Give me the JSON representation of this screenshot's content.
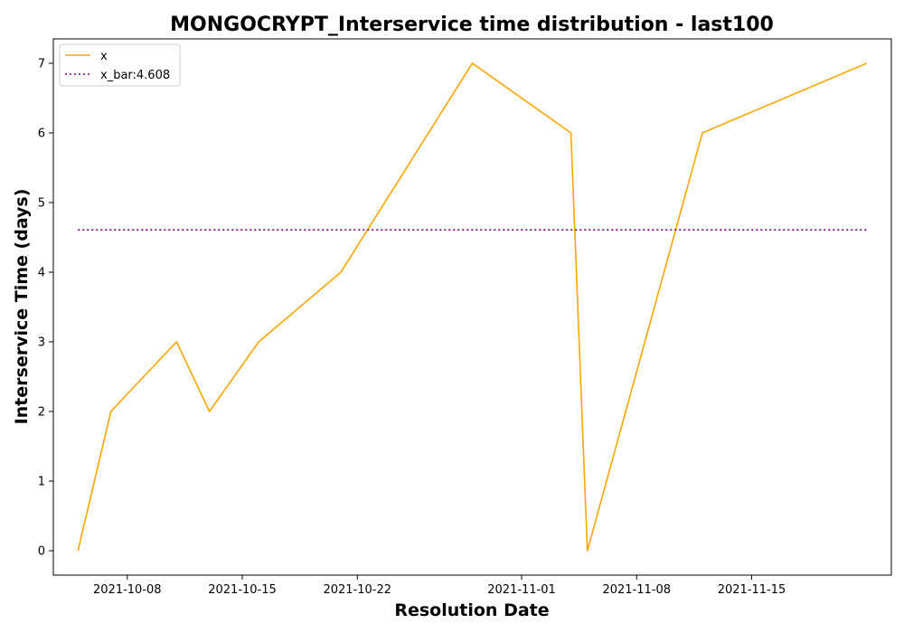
{
  "chart_data": {
    "type": "line",
    "title": "MONGOCRYPT_Interservice time distribution - last100",
    "xlabel": "Resolution Date",
    "ylabel": "Interservice Time (days)",
    "x_ticks": [
      "2021-10-08",
      "2021-10-15",
      "2021-10-22",
      "2021-11-01",
      "2021-11-08",
      "2021-11-15"
    ],
    "y_ticks": [
      "0",
      "1",
      "2",
      "3",
      "4",
      "5",
      "6",
      "7"
    ],
    "ylim": [
      -0.35,
      7.35
    ],
    "xlim": [
      "2021-10-03 12:00",
      "2021-11-23 12:00"
    ],
    "grid": false,
    "legend_position": "top-left",
    "series": [
      {
        "name": "x",
        "color": "#FFA500",
        "style": "solid",
        "points": [
          {
            "x": "2021-10-05",
            "y": 0
          },
          {
            "x": "2021-10-07",
            "y": 2
          },
          {
            "x": "2021-10-11",
            "y": 3
          },
          {
            "x": "2021-10-13",
            "y": 2
          },
          {
            "x": "2021-10-16",
            "y": 3
          },
          {
            "x": "2021-10-21",
            "y": 4
          },
          {
            "x": "2021-10-29",
            "y": 7
          },
          {
            "x": "2021-11-04",
            "y": 6
          },
          {
            "x": "2021-11-05",
            "y": 0
          },
          {
            "x": "2021-11-12",
            "y": 6
          },
          {
            "x": "2021-11-22",
            "y": 7
          }
        ]
      },
      {
        "name": "x_bar:4.608",
        "color": "#800080",
        "style": "dotted",
        "points": [
          {
            "x": "2021-10-05",
            "y": 4.608
          },
          {
            "x": "2021-11-22",
            "y": 4.608
          }
        ]
      }
    ]
  }
}
